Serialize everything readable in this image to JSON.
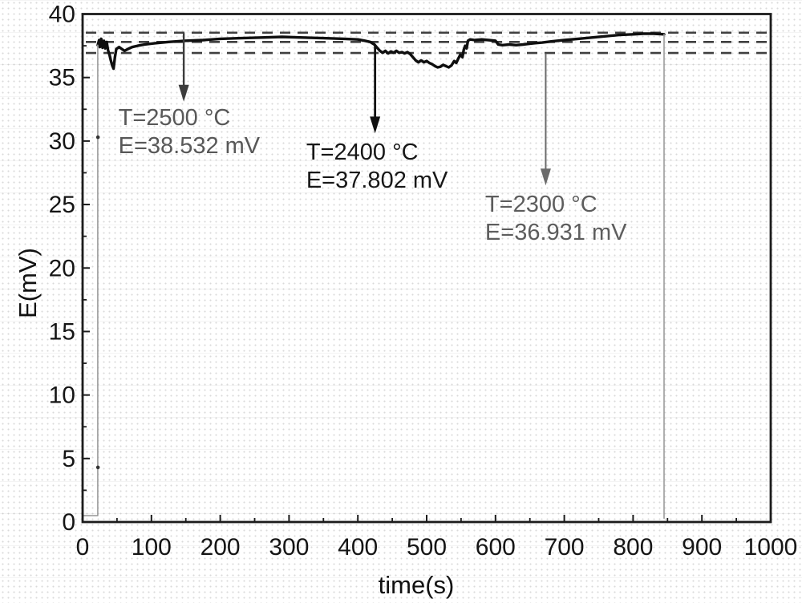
{
  "page": {
    "background": "#ffffff"
  },
  "chart_data": {
    "type": "line",
    "title": "",
    "xlabel": "time(s)",
    "ylabel": "E(mV)",
    "xlim": [
      0,
      1000
    ],
    "ylim": [
      0,
      40
    ],
    "grid": false,
    "legend": null,
    "frame_color": "#1c1c1c",
    "tick_label_color": "#151515",
    "x_tick_labels": [
      "0",
      "100",
      "200",
      "300",
      "400",
      "500",
      "600",
      "700",
      "800",
      "900",
      "1000"
    ],
    "x_major_ticks": [
      0,
      100,
      200,
      300,
      400,
      500,
      600,
      700,
      800,
      900,
      1000
    ],
    "x_minor_ticks": [
      50,
      150,
      250,
      350,
      450,
      550,
      650,
      750,
      850,
      950
    ],
    "y_tick_labels": [
      "0",
      "5",
      "10",
      "15",
      "20",
      "25",
      "30",
      "35",
      "40"
    ],
    "y_major_ticks": [
      0,
      5,
      10,
      15,
      20,
      25,
      30,
      35,
      40
    ],
    "y_minor_ticks": [
      2.5,
      7.5,
      12.5,
      17.5,
      22.5,
      27.5,
      32.5,
      37.5
    ],
    "reference_lines": [
      {
        "name": "calibration-level-2500C",
        "E": 38.532,
        "style": "dashed",
        "color": "#3f3f3f"
      },
      {
        "name": "calibration-level-2400C",
        "E": 37.802,
        "style": "dashed",
        "color": "#3f3f3f"
      },
      {
        "name": "calibration-level-2300C",
        "E": 36.931,
        "style": "dashed",
        "color": "#3f3f3f"
      }
    ],
    "series": [
      {
        "name": "thermocouple-emf",
        "color": "#0f0f0f",
        "width": 3.4,
        "points": [
          [
            22,
            37.55
          ],
          [
            24,
            37.95
          ],
          [
            25,
            37.4
          ],
          [
            27,
            38.05
          ],
          [
            29,
            37.35
          ],
          [
            31,
            37.9
          ],
          [
            33,
            37.3
          ],
          [
            35,
            37.8
          ],
          [
            37,
            37.15
          ],
          [
            39,
            36.8
          ],
          [
            41,
            36.35
          ],
          [
            43,
            35.95
          ],
          [
            45,
            35.7
          ],
          [
            47,
            36.6
          ],
          [
            49,
            37.25
          ],
          [
            53,
            37.4
          ],
          [
            57,
            37.25
          ],
          [
            61,
            37.1
          ],
          [
            66,
            37.25
          ],
          [
            72,
            37.4
          ],
          [
            80,
            37.5
          ],
          [
            90,
            37.6
          ],
          [
            105,
            37.7
          ],
          [
            125,
            37.8
          ],
          [
            150,
            37.9
          ],
          [
            175,
            37.95
          ],
          [
            200,
            38.05
          ],
          [
            230,
            38.1
          ],
          [
            260,
            38.15
          ],
          [
            290,
            38.2
          ],
          [
            320,
            38.15
          ],
          [
            350,
            38.1
          ],
          [
            380,
            38.05
          ],
          [
            400,
            38.0
          ],
          [
            410,
            37.9
          ],
          [
            418,
            37.8
          ],
          [
            424,
            37.6
          ],
          [
            428,
            37.35
          ],
          [
            432,
            37.1
          ],
          [
            436,
            36.95
          ],
          [
            440,
            37.1
          ],
          [
            444,
            36.9
          ],
          [
            448,
            37.05
          ],
          [
            452,
            36.95
          ],
          [
            456,
            37.1
          ],
          [
            460,
            36.95
          ],
          [
            464,
            37.0
          ],
          [
            468,
            36.9
          ],
          [
            472,
            37.0
          ],
          [
            476,
            36.85
          ],
          [
            480,
            36.6
          ],
          [
            484,
            36.35
          ],
          [
            488,
            36.2
          ],
          [
            492,
            36.35
          ],
          [
            496,
            36.2
          ],
          [
            500,
            36.3
          ],
          [
            504,
            36.15
          ],
          [
            508,
            36.05
          ],
          [
            512,
            35.9
          ],
          [
            516,
            35.8
          ],
          [
            520,
            35.85
          ],
          [
            524,
            36.0
          ],
          [
            528,
            35.9
          ],
          [
            532,
            35.8
          ],
          [
            536,
            35.95
          ],
          [
            540,
            36.3
          ],
          [
            543,
            36.15
          ],
          [
            546,
            36.5
          ],
          [
            549,
            36.8
          ],
          [
            552,
            36.6
          ],
          [
            554,
            37.2
          ],
          [
            556,
            37.5
          ],
          [
            558,
            37.3
          ],
          [
            560,
            37.9
          ],
          [
            563,
            38.0
          ],
          [
            570,
            37.95
          ],
          [
            580,
            38.0
          ],
          [
            590,
            37.95
          ],
          [
            600,
            37.9
          ],
          [
            604,
            37.6
          ],
          [
            610,
            37.55
          ],
          [
            620,
            37.6
          ],
          [
            630,
            37.55
          ],
          [
            640,
            37.6
          ],
          [
            648,
            37.65
          ],
          [
            656,
            37.7
          ],
          [
            668,
            37.75
          ],
          [
            682,
            37.85
          ],
          [
            700,
            37.95
          ],
          [
            720,
            38.05
          ],
          [
            740,
            38.15
          ],
          [
            760,
            38.25
          ],
          [
            780,
            38.35
          ],
          [
            800,
            38.4
          ],
          [
            815,
            38.45
          ],
          [
            830,
            38.45
          ],
          [
            845,
            38.4
          ]
        ]
      },
      {
        "name": "signal-baseline-and-rise",
        "color": "#9c9c9c",
        "width": 1.6,
        "points": [
          [
            1,
            0.5
          ],
          [
            22,
            0.5
          ],
          [
            22,
            37.55
          ]
        ]
      },
      {
        "name": "signal-fall",
        "color": "#9c9c9c",
        "width": 1.6,
        "points": [
          [
            845,
            38.4
          ],
          [
            845,
            0.3
          ]
        ]
      }
    ],
    "markers": [
      {
        "name": "rise-sample-dot",
        "t": 22.3,
        "E": 30.3
      },
      {
        "name": "rise-sample-dot",
        "t": 22.3,
        "E": 4.3
      }
    ],
    "annotations": [
      {
        "line1": "T=2500 °C",
        "line2": "E=38.532 mV",
        "text_color": "#585858",
        "arrow_color": "#3c3c3c",
        "arrow_width": 2.4,
        "arrow_t": 147,
        "arrow_E_from": 38.5,
        "arrow_E_to": 33.1,
        "text_t": 52,
        "text_E": 32.9
      },
      {
        "line1": "T=2400 °C",
        "line2": "E=37.802 mV",
        "text_color": "#171717",
        "arrow_color": "#101010",
        "arrow_width": 2.8,
        "arrow_t": 425,
        "arrow_E_from": 37.55,
        "arrow_E_to": 30.6,
        "text_t": 325,
        "text_E": 30.2
      },
      {
        "line1": "T=2300 °C",
        "line2": "E=36.931 mV",
        "text_color": "#5d5d5d",
        "arrow_color": "#6b6b6b",
        "arrow_width": 2.0,
        "arrow_t": 673,
        "arrow_E_from": 36.9,
        "arrow_E_to": 26.5,
        "text_t": 585,
        "text_E": 26.1
      }
    ]
  }
}
